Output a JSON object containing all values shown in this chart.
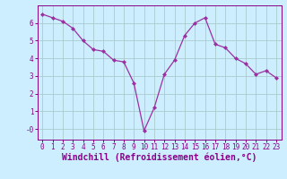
{
  "x": [
    0,
    1,
    2,
    3,
    4,
    5,
    6,
    7,
    8,
    9,
    10,
    11,
    12,
    13,
    14,
    15,
    16,
    17,
    18,
    19,
    20,
    21,
    22,
    23
  ],
  "y": [
    6.5,
    6.3,
    6.1,
    5.7,
    5.0,
    4.5,
    4.4,
    3.9,
    3.8,
    2.6,
    -0.1,
    1.2,
    3.1,
    3.9,
    5.3,
    6.0,
    6.3,
    4.8,
    4.6,
    4.0,
    3.7,
    3.1,
    3.3,
    2.9
  ],
  "line_color": "#9b30a0",
  "marker": "D",
  "marker_size": 2.0,
  "bg_color": "#cceeff",
  "grid_color": "#aacccc",
  "xlabel": "Windchill (Refroidissement éolien,°C)",
  "ylabel": "",
  "xlim": [
    -0.5,
    23.5
  ],
  "ylim": [
    -0.6,
    7.0
  ],
  "yticks": [
    0,
    1,
    2,
    3,
    4,
    5,
    6
  ],
  "ytick_labels": [
    "-0",
    "1",
    "2",
    "3",
    "4",
    "5",
    "6"
  ],
  "xticks": [
    0,
    1,
    2,
    3,
    4,
    5,
    6,
    7,
    8,
    9,
    10,
    11,
    12,
    13,
    14,
    15,
    16,
    17,
    18,
    19,
    20,
    21,
    22,
    23
  ],
  "font_color": "#880088",
  "tick_fontsize": 5.5,
  "label_fontsize": 7.0
}
